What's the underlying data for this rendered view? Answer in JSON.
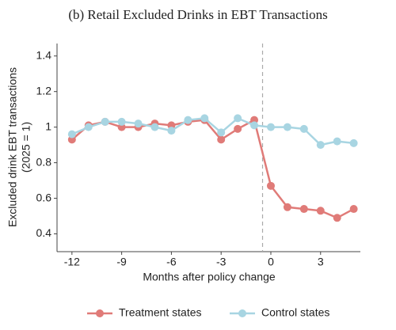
{
  "chart_data": {
    "type": "line",
    "title": "(b) Retail Excluded Drinks in EBT Transactions",
    "x_label": "Months after policy change",
    "y_label": [
      "Excluded drink EBT transactions",
      "(2025 = 1)"
    ],
    "x": [
      -12,
      -11,
      -10,
      -9,
      -8,
      -7,
      -6,
      -5,
      -4,
      -3,
      -2,
      -1,
      0,
      1,
      2,
      3,
      4,
      5
    ],
    "series": [
      {
        "name": "Treatment states",
        "color": "#e07b78",
        "values": [
          0.93,
          1.01,
          1.03,
          1.0,
          1.0,
          1.02,
          1.01,
          1.03,
          1.04,
          0.93,
          0.99,
          1.04,
          0.67,
          0.55,
          0.54,
          0.53,
          0.49,
          0.54
        ]
      },
      {
        "name": "Control states",
        "color": "#a8d5e2",
        "values": [
          0.96,
          1.0,
          1.03,
          1.03,
          1.02,
          1.0,
          0.98,
          1.04,
          1.05,
          0.97,
          1.05,
          1.01,
          1.0,
          1.0,
          0.99,
          0.9,
          0.92,
          0.91
        ]
      }
    ],
    "xlim": [
      -12.9,
      5.4
    ],
    "xticks": [
      -12,
      -9,
      -6,
      -3,
      0,
      3
    ],
    "ylim": [
      0.3,
      1.47
    ],
    "yticks": [
      0.4,
      0.6,
      0.8,
      1.0,
      1.2,
      1.4
    ],
    "vline": -0.5,
    "legend": "bottom",
    "grid": false
  }
}
